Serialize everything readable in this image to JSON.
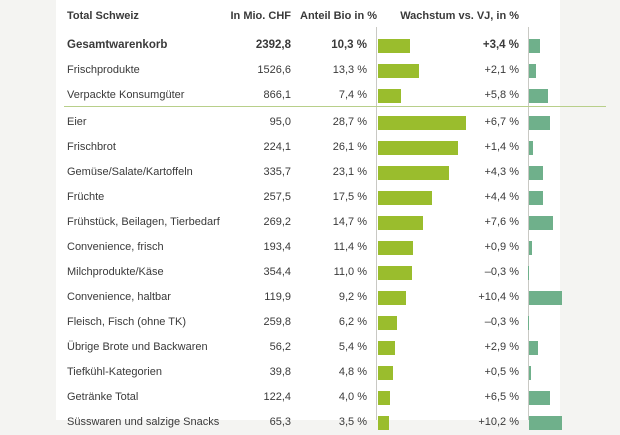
{
  "colors": {
    "bio_bar": "#9abd2d",
    "growth_bar": "#6fb08b",
    "divider": "#b8cf8a"
  },
  "headers": {
    "region": "Total Schweiz",
    "chf": "In Mio. CHF",
    "bio": "Anteil Bio in %",
    "growth": "Wachstum vs. VJ, in %"
  },
  "chart_data": {
    "type": "table",
    "columns": [
      "Total Schweiz",
      "In Mio. CHF",
      "Anteil Bio in %",
      "Wachstum vs. VJ, in %"
    ],
    "rows": [
      {
        "label": "Gesamtwarenkorb",
        "chf": "2392,8",
        "bio": "10,3 %",
        "growth": "+3,4 %",
        "bio_value": 10.3,
        "growth_value": 3.4,
        "bold": true
      },
      {
        "label": "Frischprodukte",
        "chf": "1526,6",
        "bio": "13,3 %",
        "growth": "+2,1 %",
        "bio_value": 13.3,
        "growth_value": 2.1
      },
      {
        "label": "Verpackte Konsumgüter",
        "chf": "866,1",
        "bio": "7,4 %",
        "growth": "+5,8 %",
        "bio_value": 7.4,
        "growth_value": 5.8
      },
      {
        "label": "Eier",
        "chf": "95,0",
        "bio": "28,7 %",
        "growth": "+6,7 %",
        "bio_value": 28.7,
        "growth_value": 6.7
      },
      {
        "label": "Frischbrot",
        "chf": "224,1",
        "bio": "26,1 %",
        "growth": "+1,4 %",
        "bio_value": 26.1,
        "growth_value": 1.4
      },
      {
        "label": "Gemüse/Salate/Kartoffeln",
        "chf": "335,7",
        "bio": "23,1 %",
        "growth": "+4,3 %",
        "bio_value": 23.1,
        "growth_value": 4.3
      },
      {
        "label": "Früchte",
        "chf": "257,5",
        "bio": "17,5 %",
        "growth": "+4,4 %",
        "bio_value": 17.5,
        "growth_value": 4.4
      },
      {
        "label": "Frühstück, Beilagen, Tierbedarf",
        "chf": "269,2",
        "bio": "14,7 %",
        "growth": "+7,6 %",
        "bio_value": 14.7,
        "growth_value": 7.6
      },
      {
        "label": "Convenience, frisch",
        "chf": "193,4",
        "bio": "11,4 %",
        "growth": "+0,9 %",
        "bio_value": 11.4,
        "growth_value": 0.9
      },
      {
        "label": "Milchprodukte/Käse",
        "chf": "354,4",
        "bio": "11,0 %",
        "growth": "–0,3 %",
        "bio_value": 11.0,
        "growth_value": -0.3
      },
      {
        "label": "Convenience, haltbar",
        "chf": "119,9",
        "bio": "9,2 %",
        "growth": "+10,4 %",
        "bio_value": 9.2,
        "growth_value": 10.4
      },
      {
        "label": "Fleisch, Fisch (ohne TK)",
        "chf": "259,8",
        "bio": "6,2 %",
        "growth": "–0,3 %",
        "bio_value": 6.2,
        "growth_value": -0.3
      },
      {
        "label": "Übrige Brote und Backwaren",
        "chf": "56,2",
        "bio": "5,4 %",
        "growth": "+2,9 %",
        "bio_value": 5.4,
        "growth_value": 2.9
      },
      {
        "label": "Tiefkühl-Kategorien",
        "chf": "39,8",
        "bio": "4,8 %",
        "growth": "+0,5 %",
        "bio_value": 4.8,
        "growth_value": 0.5
      },
      {
        "label": "Getränke Total",
        "chf": "122,4",
        "bio": "4,0 %",
        "growth": "+6,5 %",
        "bio_value": 4.0,
        "growth_value": 6.5
      },
      {
        "label": "Süsswaren und salzige Snacks",
        "chf": "65,3",
        "bio": "3,5 %",
        "growth": "+10,2 %",
        "bio_value": 3.5,
        "growth_value": 10.2
      }
    ]
  }
}
